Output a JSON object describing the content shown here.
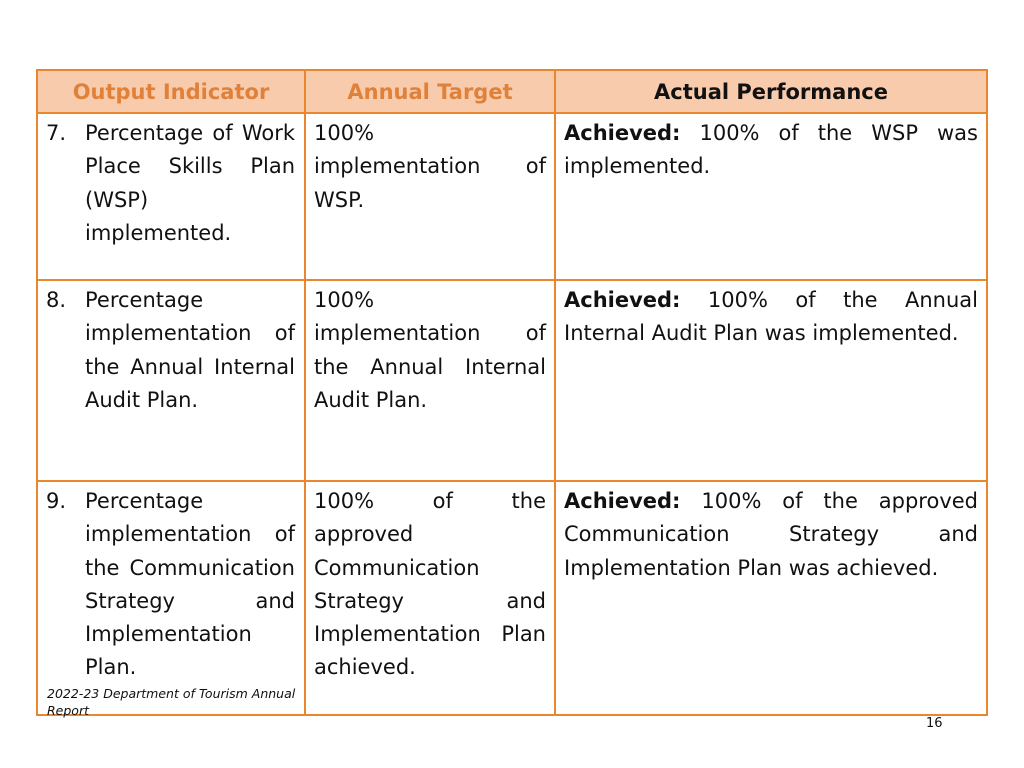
{
  "table": {
    "headers": [
      "Output Indicator",
      "Annual Target",
      "Actual Performance"
    ],
    "rows": [
      {
        "num": "7.",
        "indicator": "Percentage of Work Place Skills Plan (WSP) implemented.",
        "target": "100% implementation of WSP.",
        "status": "Achieved:",
        "performance": " 100% of the WSP was implemented."
      },
      {
        "num": "8.",
        "indicator": "Percentage implementation of the Annual Internal Audit Plan.",
        "target": "100% implementation of the Annual Internal Audit Plan.",
        "status": "Achieved:",
        "performance": " 100% of the Annual Internal Audit Plan was implemented."
      },
      {
        "num": "9.",
        "indicator": "Percentage implementation of the Communication Strategy and Implementation Plan.",
        "target": "100% of the approved Communication Strategy and Implementation Plan achieved.",
        "status": "Achieved:",
        "performance": " 100% of the approved Communication Strategy and Implementation Plan was achieved."
      }
    ]
  },
  "footer": {
    "report_title": "2022-23 Department of Tourism Annual Report",
    "page_number": "16"
  },
  "colors": {
    "border": "#e8872e",
    "header_fill": "#f8cbad",
    "header_text_orange": "#e0813a"
  }
}
